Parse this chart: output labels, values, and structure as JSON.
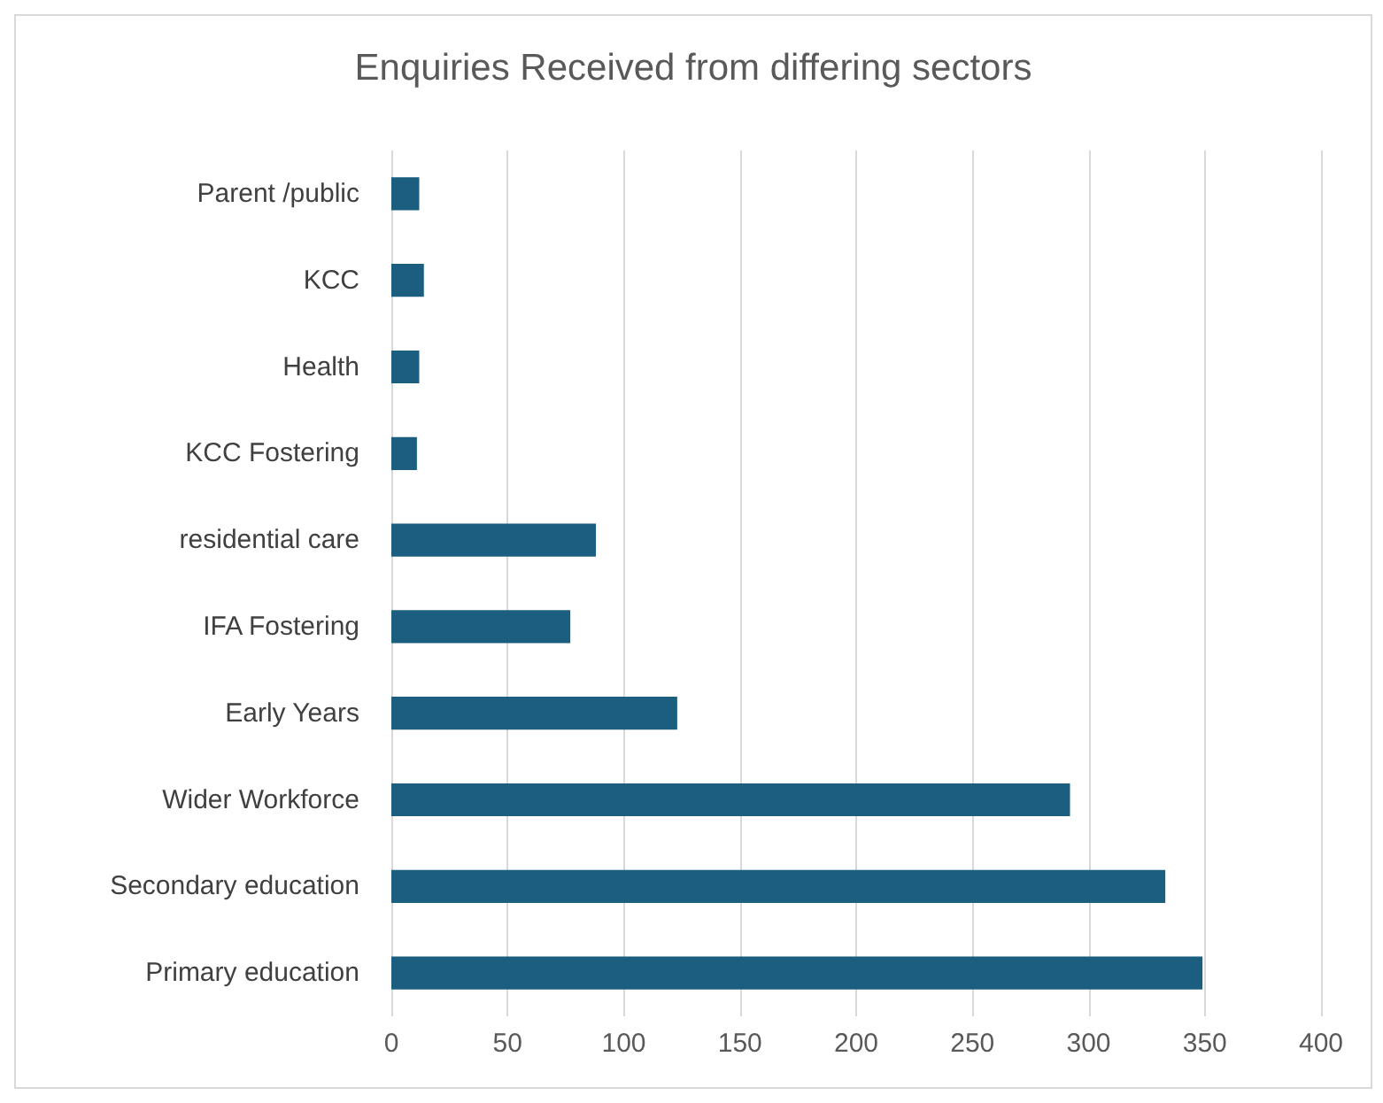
{
  "chart_data": {
    "type": "bar",
    "orientation": "horizontal",
    "title": "Enquiries Received from differing sectors",
    "categories": [
      "Parent /public",
      "KCC",
      "Health",
      "KCC Fostering",
      "residential care",
      "IFA Fostering",
      "Early Years",
      "Wider Workforce",
      "Secondary education",
      "Primary education"
    ],
    "values": [
      12,
      14,
      12,
      11,
      88,
      77,
      123,
      292,
      333,
      349
    ],
    "color": "#1b5e80",
    "xlim": [
      0,
      400
    ],
    "xticks": [
      0,
      50,
      100,
      150,
      200,
      250,
      300,
      350,
      400
    ],
    "grid": "x"
  }
}
